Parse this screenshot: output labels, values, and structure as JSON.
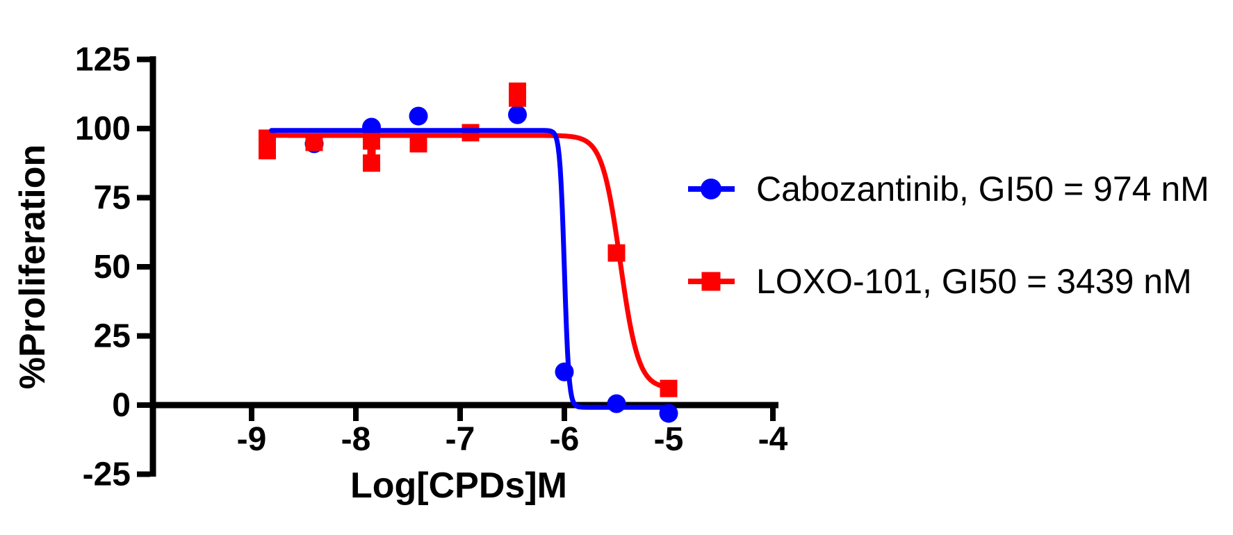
{
  "colors": {
    "blue": "#0000FF",
    "red": "#FF0000",
    "axis": "#000000",
    "background": "#FFFFFF"
  },
  "chart_data": {
    "type": "line",
    "title": "",
    "xlabel": "Log[CPDs]M",
    "ylabel": "%Proliferation",
    "xlim": [
      -9.97,
      -3.97
    ],
    "ylim": [
      -25,
      125
    ],
    "grid": false,
    "legend_position": "right-middle",
    "x_ticks": [
      "-9",
      "-8",
      "-7",
      "-6",
      "-5",
      "-4"
    ],
    "x_tick_values": [
      -9,
      -8,
      -7,
      -6,
      -5,
      -4
    ],
    "y_ticks": [
      "125",
      "100",
      "75",
      "50",
      "25",
      "0",
      "-25"
    ],
    "y_tick_values": [
      125,
      100,
      75,
      50,
      25,
      0,
      -25
    ],
    "series": [
      {
        "name": "Cabozantinib",
        "legend_label": "Cabozantinib, GI50 = 974 nM",
        "gi50": "974 nM",
        "color": "#0000FF",
        "marker": "circle",
        "points": [
          {
            "x": -8.4,
            "y": 94.5
          },
          {
            "x": -7.85,
            "y": 100.5
          },
          {
            "x": -7.4,
            "y": 104.5
          },
          {
            "x": -6.45,
            "y": 105
          },
          {
            "x": -6.0,
            "y": 12
          },
          {
            "x": -5.5,
            "y": 0.5
          },
          {
            "x": -5.0,
            "y": -3
          }
        ],
        "curve": {
          "top": 99.3,
          "bottom": -0.8,
          "logIC50": -6.0,
          "slope": 20,
          "x_start": -8.81,
          "x_end": -5.0
        }
      },
      {
        "name": "LOXO-101",
        "legend_label": "LOXO-101, GI50 = 3439 nM",
        "gi50": "3439 nM",
        "color": "#FF0000",
        "marker": "square",
        "points": [
          {
            "x": -8.85,
            "y": 96.5
          },
          {
            "x": -8.85,
            "y": 92
          },
          {
            "x": -8.4,
            "y": 95
          },
          {
            "x": -7.85,
            "y": 95.5
          },
          {
            "x": -7.85,
            "y": 87.5
          },
          {
            "x": -7.4,
            "y": 94.5
          },
          {
            "x": -6.9,
            "y": 98.5
          },
          {
            "x": -6.45,
            "y": 113.5
          },
          {
            "x": -6.45,
            "y": 111
          },
          {
            "x": -5.5,
            "y": 55
          },
          {
            "x": -5.0,
            "y": 6
          }
        ],
        "connectors": [
          {
            "x": -8.85,
            "y1": 96.5,
            "y2": 92
          },
          {
            "x": -7.85,
            "y1": 95.5,
            "y2": 87.5
          }
        ],
        "curve": {
          "top": 97.5,
          "bottom": 6,
          "logIC50": -5.464,
          "slope": 5,
          "x_start": -8.91,
          "x_end": -5.0
        }
      }
    ]
  }
}
